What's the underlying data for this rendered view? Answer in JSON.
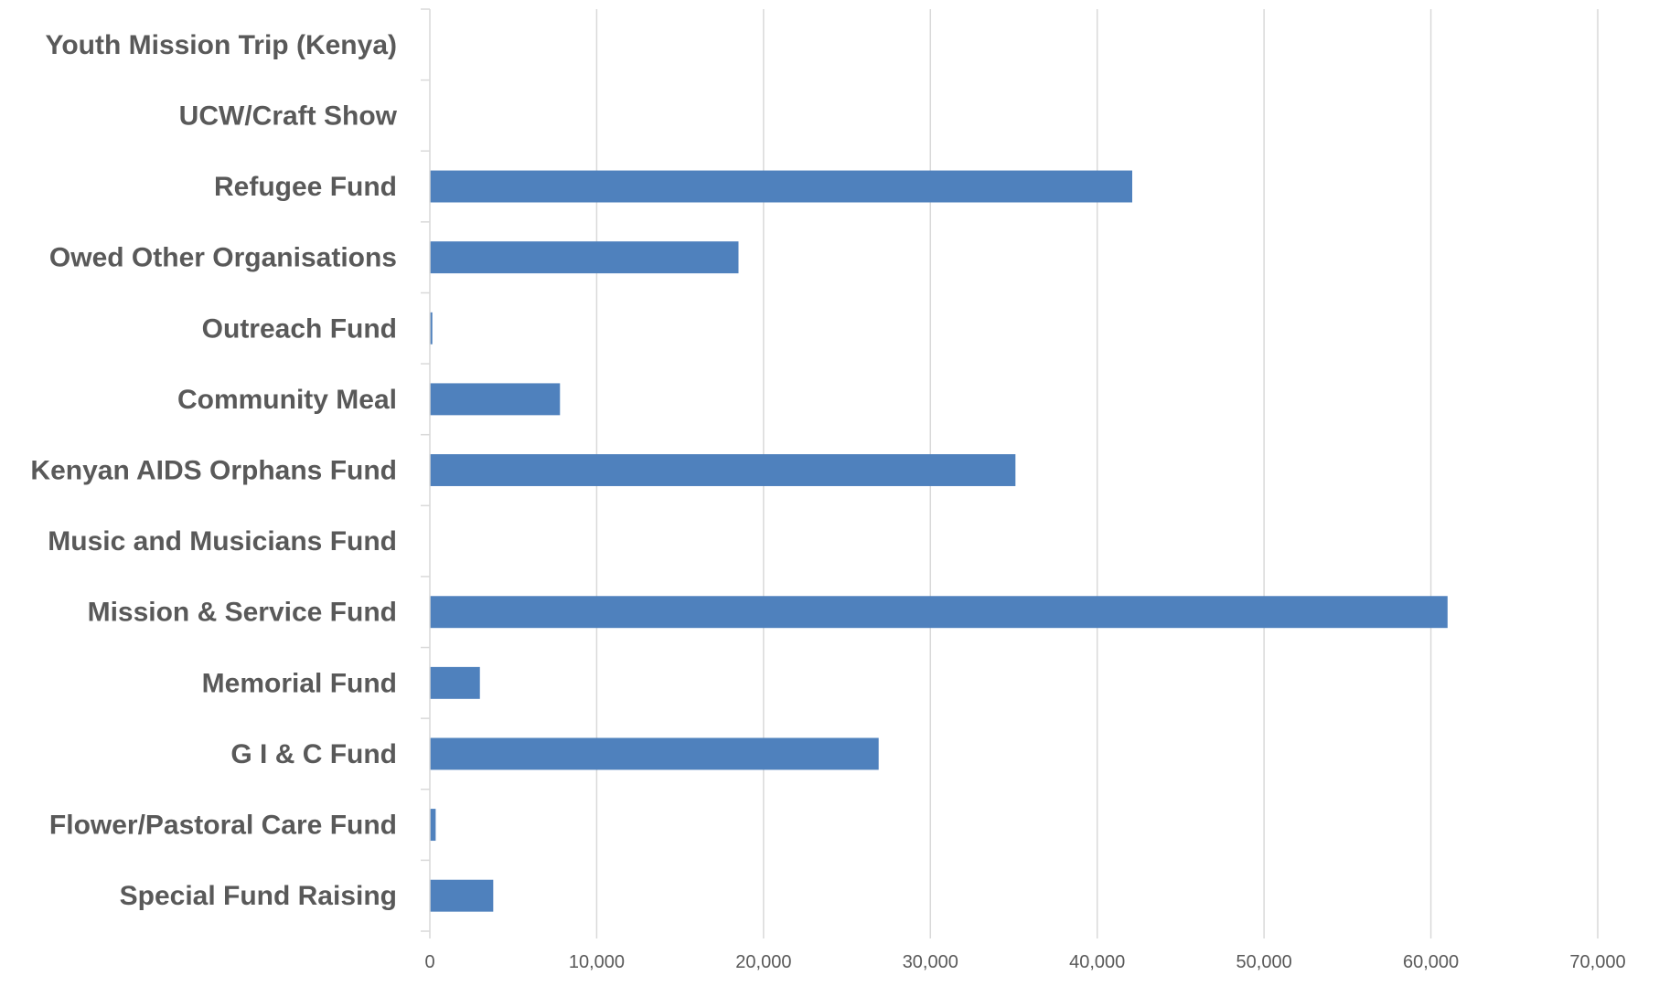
{
  "chart_data": {
    "type": "bar",
    "orientation": "horizontal",
    "title": "",
    "xlabel": "",
    "ylabel": "",
    "categories": [
      "Youth Mission Trip (Kenya)",
      "UCW/Craft Show",
      "Refugee Fund",
      "Owed Other Organisations",
      "Outreach Fund",
      "Community Meal",
      "Kenyan AIDS Orphans Fund",
      "Music and Musicians Fund",
      "Mission & Service Fund",
      "Memorial Fund",
      "G I & C Fund",
      "Flower/Pastoral Care Fund",
      "Special Fund Raising"
    ],
    "values": [
      0,
      0,
      42100,
      18500,
      150,
      7800,
      35100,
      0,
      61000,
      3000,
      26900,
      350,
      3800
    ],
    "xlim": [
      0,
      70000
    ],
    "x_ticks": [
      0,
      10000,
      20000,
      30000,
      40000,
      50000,
      60000,
      70000
    ],
    "x_tick_labels": [
      "0",
      "10,000",
      "20,000",
      "30,000",
      "40,000",
      "50,000",
      "60,000",
      "70,000"
    ],
    "grid": "vertical",
    "legend": "none",
    "bar_color": "#4f81bd",
    "text_color": "#595959",
    "grid_color": "#d9d9d9"
  }
}
